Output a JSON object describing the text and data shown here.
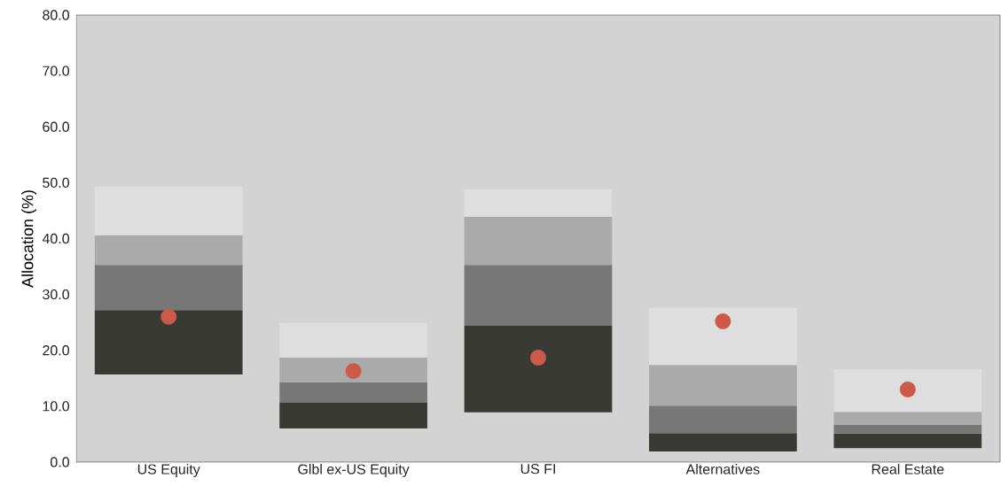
{
  "chart_data": {
    "type": "bar",
    "ylabel": "Allocation (%)",
    "categories": [
      "US Equity",
      "Glbl ex-US Equity",
      "US FI",
      "Alternatives",
      "Real Estate"
    ],
    "series": [
      {
        "color": "#3a3a35",
        "base": [
          15.7,
          6.0,
          8.9,
          1.9,
          2.5
        ],
        "values": [
          11.5,
          4.6,
          15.5,
          3.3,
          2.6
        ]
      },
      {
        "color": "#777777",
        "base": [
          27.2,
          10.6,
          24.4,
          5.2,
          5.1
        ],
        "values": [
          8.1,
          3.7,
          10.9,
          4.9,
          1.6
        ]
      },
      {
        "color": "#aaaaaa",
        "base": [
          35.3,
          14.3,
          35.3,
          10.1,
          6.7
        ],
        "values": [
          5.3,
          4.4,
          8.6,
          7.3,
          2.3
        ]
      },
      {
        "color": "#dedede",
        "base": [
          40.6,
          18.7,
          43.9,
          17.4,
          9.0
        ],
        "values": [
          8.7,
          6.2,
          4.9,
          10.2,
          7.6
        ]
      },
      {
        "type": "scatter",
        "color": "#cd5a48",
        "values": [
          26.0,
          16.3,
          18.7,
          25.2,
          13.0
        ]
      }
    ],
    "ylim": [
      0,
      80
    ],
    "yticks": [
      {
        "value": 0,
        "label": "0.0"
      },
      {
        "value": 10,
        "label": "10.0"
      },
      {
        "value": 20,
        "label": "20.0"
      },
      {
        "value": 30,
        "label": "30.0"
      },
      {
        "value": 40,
        "label": "40.0"
      },
      {
        "value": 50,
        "label": "50.0"
      },
      {
        "value": 60,
        "label": "60.0"
      },
      {
        "value": 70,
        "label": "70.0"
      },
      {
        "value": 80,
        "label": "80.0"
      }
    ]
  }
}
